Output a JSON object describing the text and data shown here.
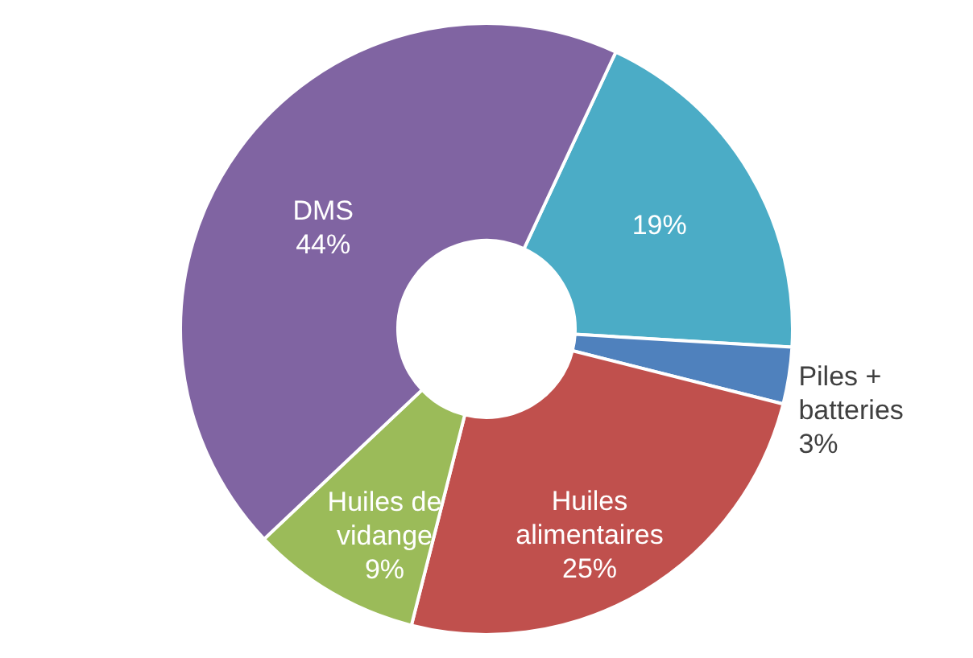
{
  "chart_data": {
    "type": "donut",
    "categories": [
      null,
      "Piles + batteries",
      "Huiles alimentaires",
      "Huiles de vidange",
      "DMS"
    ],
    "values": [
      19,
      3,
      25,
      9,
      44
    ],
    "value_labels": [
      "19%",
      "3%",
      "25%",
      "9%",
      "44%"
    ],
    "colors": [
      "#4bacc6",
      "#4f81bd",
      "#c0504d",
      "#9bbb59",
      "#8064a2"
    ],
    "legend": false
  }
}
